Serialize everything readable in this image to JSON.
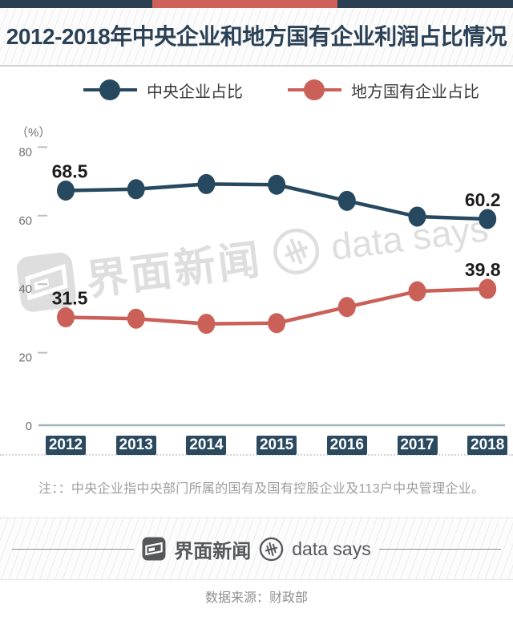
{
  "header": {
    "title": "2012-2018年中央企业和地方国有企业利润占比情况"
  },
  "chart_data": {
    "type": "line",
    "unit_label": "（%）",
    "categories": [
      "2012",
      "2013",
      "2014",
      "2015",
      "2016",
      "2017",
      "2018"
    ],
    "series": [
      {
        "name": "中央企业占比",
        "color": "#27495f",
        "values": [
          68.5,
          68.9,
          70.4,
          70.2,
          65.5,
          60.9,
          60.2
        ],
        "point_labels": {
          "first": "68.5",
          "last": "60.2"
        }
      },
      {
        "name": "地方国有企业占比",
        "color": "#cb6058",
        "values": [
          31.5,
          31.1,
          29.6,
          29.8,
          34.5,
          39.1,
          39.8
        ],
        "point_labels": {
          "first": "31.5",
          "last": "39.8"
        }
      }
    ],
    "yticks": [
      80,
      60,
      40,
      20,
      0
    ],
    "ylim": [
      0,
      85
    ],
    "grid": false,
    "legend_position": "top"
  },
  "note": "注：：中央企业指中央部门所属的国有及国有控股企业及113户中央管理企业。",
  "watermark": {
    "brand": "界面新闻",
    "sub_brand": "data says"
  },
  "footer": {
    "brand": "界面新闻",
    "sub_brand": "data says",
    "source": "数据来源：财政部"
  },
  "colors": {
    "top_bar_navy": "#2a3f52",
    "top_bar_red": "#d0605a",
    "title": "#2b4156",
    "tick_text": "#6f6f6f",
    "tick_dash": "#b9bec1",
    "axis_line": "#9eb3bb",
    "data_label": "#1c1c1c",
    "year_box": "#2b4a60",
    "year_box_text": "#ffffff",
    "legend_text": "#3c3c3c",
    "note_text": "#9d9d9d",
    "footer_text": "#56575b",
    "source_text": "#8f8f8f",
    "watermark": "#dedede"
  }
}
